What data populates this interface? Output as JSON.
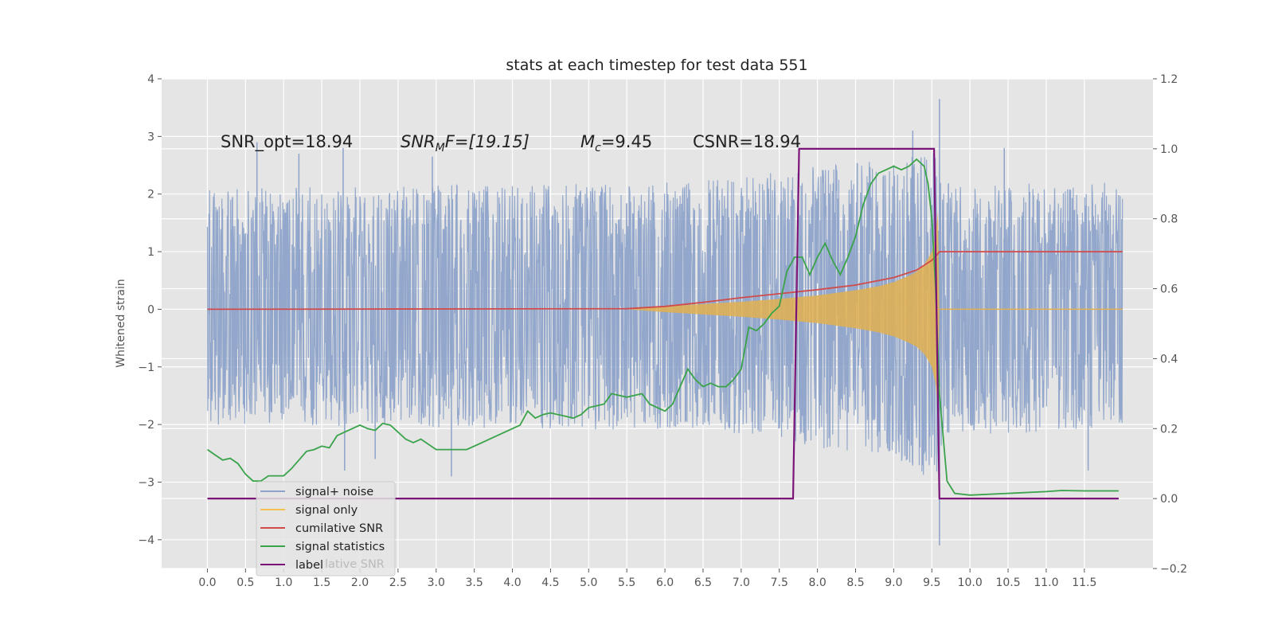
{
  "chart_data": {
    "type": "line",
    "title": "stats at each timestep for test data 551",
    "ylabel": "Whitened strain",
    "xlabel": "",
    "xlim": [
      -0.6,
      12.4
    ],
    "ylim": [
      -4.5,
      4.0
    ],
    "y2lim": [
      -0.2,
      1.2
    ],
    "grid": true,
    "x_ticks": [
      "0.0",
      "0.5",
      "1.0",
      "1.5",
      "2.0",
      "2.5",
      "3.0",
      "3.5",
      "4.0",
      "4.5",
      "5.0",
      "5.5",
      "6.0",
      "6.5",
      "7.0",
      "7.5",
      "8.0",
      "8.5",
      "9.0",
      "9.5",
      "10.0",
      "10.5",
      "11.0",
      "11.5"
    ],
    "y_ticks": [
      "4",
      "3",
      "2",
      "1",
      "0",
      "−1",
      "−2",
      "−3",
      "−4"
    ],
    "y2_ticks": [
      "1.2",
      "1.0",
      "0.8",
      "0.6",
      "0.4",
      "0.2",
      "0.0",
      "−0.2"
    ],
    "annotations": {
      "snr_opt": "SNR_opt=18.94",
      "snr_mf_main": "SNR",
      "snr_mf_sub": "M",
      "snr_mf_rest": "F=[19.15]",
      "mc_main": "M",
      "mc_sub": "c",
      "mc_rest": "=9.45",
      "csnr": "CSNR=18.94"
    },
    "legend": {
      "placement": "lower-left",
      "entries": [
        "signal+ noise",
        "signal only",
        "cumilative SNR",
        "signal statistics",
        "label"
      ],
      "ghost": "lative SNR"
    },
    "colors": {
      "noise": "#8da3c9",
      "signal": "#e2b050",
      "cumulative": "#d14b4b",
      "statistics": "#3aa34a",
      "label": "#7b1478",
      "legend_signal": "#f2c44e"
    },
    "series": [
      {
        "name": "signal+ noise",
        "axis": "left",
        "envelope": {
          "x": [
            0.0,
            6.0,
            7.0,
            7.5,
            8.0,
            8.5,
            9.0,
            9.3,
            9.5,
            9.58,
            9.65,
            12.0
          ],
          "upper": [
            2.1,
            2.2,
            2.3,
            2.4,
            2.5,
            2.55,
            2.6,
            2.7,
            2.7,
            3.1,
            2.2,
            2.2
          ],
          "lower": [
            -2.0,
            -2.1,
            -2.2,
            -2.3,
            -2.4,
            -2.5,
            -2.6,
            -2.8,
            -3.0,
            -3.3,
            -2.2,
            -2.1
          ]
        },
        "spikes": [
          {
            "x": 0.65,
            "y": 2.9
          },
          {
            "x": 1.2,
            "y": 2.7
          },
          {
            "x": 1.78,
            "y": 2.8
          },
          {
            "x": 1.8,
            "y": -2.8
          },
          {
            "x": 2.2,
            "y": -2.6
          },
          {
            "x": 2.95,
            "y": 2.65
          },
          {
            "x": 3.2,
            "y": -2.9
          },
          {
            "x": 6.0,
            "y": 1.25
          },
          {
            "x": 6.0,
            "y": -0.4
          },
          {
            "x": 9.25,
            "y": 3.1
          },
          {
            "x": 9.6,
            "y": 3.65
          },
          {
            "x": 9.6,
            "y": -4.1
          },
          {
            "x": 10.45,
            "y": 2.8
          },
          {
            "x": 11.55,
            "y": -2.8
          }
        ]
      },
      {
        "name": "signal only",
        "axis": "left",
        "x": [
          5.5,
          6.0,
          6.5,
          7.0,
          7.5,
          8.0,
          8.5,
          8.8,
          9.0,
          9.2,
          9.3,
          9.4,
          9.45,
          9.5,
          9.55,
          9.58,
          9.6,
          12.0
        ],
        "amplitude": [
          0.0,
          0.05,
          0.09,
          0.13,
          0.18,
          0.24,
          0.33,
          0.4,
          0.47,
          0.58,
          0.65,
          0.78,
          0.88,
          1.0,
          1.3,
          1.7,
          0.0,
          0.0
        ]
      },
      {
        "name": "cumilative SNR",
        "axis": "left",
        "x": [
          0.0,
          5.5,
          6.0,
          6.5,
          7.0,
          7.5,
          8.0,
          8.5,
          9.0,
          9.3,
          9.5,
          9.57,
          9.6,
          12.0
        ],
        "values": [
          0.0,
          0.01,
          0.05,
          0.12,
          0.2,
          0.27,
          0.34,
          0.42,
          0.55,
          0.68,
          0.85,
          0.95,
          1.0,
          1.0
        ]
      },
      {
        "name": "signal statistics",
        "axis": "right",
        "x": [
          0.0,
          0.1,
          0.2,
          0.3,
          0.4,
          0.5,
          0.6,
          0.7,
          0.8,
          1.0,
          1.1,
          1.2,
          1.3,
          1.4,
          1.5,
          1.6,
          1.7,
          1.8,
          1.9,
          2.0,
          2.1,
          2.2,
          2.3,
          2.4,
          2.5,
          2.6,
          2.7,
          2.8,
          3.0,
          3.2,
          3.4,
          3.6,
          3.8,
          4.0,
          4.1,
          4.2,
          4.3,
          4.4,
          4.5,
          4.6,
          4.7,
          4.8,
          4.9,
          5.0,
          5.1,
          5.2,
          5.3,
          5.5,
          5.7,
          5.8,
          6.0,
          6.1,
          6.2,
          6.3,
          6.4,
          6.5,
          6.6,
          6.7,
          6.8,
          6.9,
          7.0,
          7.1,
          7.2,
          7.3,
          7.4,
          7.5,
          7.6,
          7.7,
          7.8,
          7.9,
          8.0,
          8.1,
          8.2,
          8.3,
          8.4,
          8.5,
          8.6,
          8.7,
          8.8,
          8.9,
          9.0,
          9.1,
          9.2,
          9.3,
          9.4,
          9.45,
          9.5,
          9.55,
          9.6,
          9.7,
          9.8,
          10.0,
          10.5,
          11.0,
          11.2,
          11.5,
          11.95
        ],
        "values": [
          0.14,
          0.125,
          0.11,
          0.115,
          0.1,
          0.07,
          0.05,
          0.05,
          0.065,
          0.065,
          0.085,
          0.11,
          0.135,
          0.14,
          0.15,
          0.145,
          0.18,
          0.19,
          0.2,
          0.21,
          0.2,
          0.195,
          0.215,
          0.21,
          0.19,
          0.17,
          0.16,
          0.17,
          0.14,
          0.14,
          0.14,
          0.16,
          0.18,
          0.2,
          0.21,
          0.25,
          0.23,
          0.24,
          0.245,
          0.24,
          0.235,
          0.23,
          0.24,
          0.26,
          0.265,
          0.27,
          0.3,
          0.29,
          0.3,
          0.27,
          0.25,
          0.27,
          0.32,
          0.37,
          0.34,
          0.32,
          0.33,
          0.32,
          0.32,
          0.34,
          0.37,
          0.49,
          0.48,
          0.5,
          0.53,
          0.55,
          0.65,
          0.69,
          0.69,
          0.64,
          0.69,
          0.73,
          0.68,
          0.64,
          0.69,
          0.75,
          0.84,
          0.9,
          0.93,
          0.94,
          0.95,
          0.94,
          0.95,
          0.97,
          0.95,
          0.9,
          0.8,
          0.6,
          0.3,
          0.05,
          0.015,
          0.01,
          0.015,
          0.02,
          0.023,
          0.022,
          0.022
        ],
        "value_last": 0.022
      },
      {
        "name": "label",
        "axis": "right",
        "x": [
          0.0,
          7.68,
          7.76,
          9.53,
          9.6,
          11.95
        ],
        "values": [
          0.0,
          0.0,
          1.0,
          1.0,
          0.0,
          0.0
        ]
      }
    ]
  }
}
